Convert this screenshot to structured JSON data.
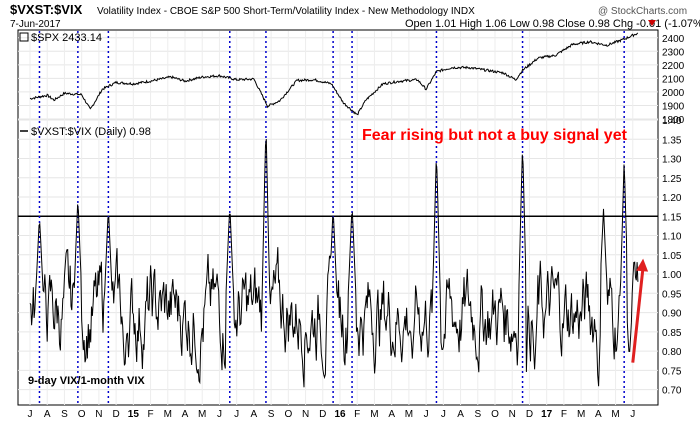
{
  "header": {
    "symbol": "$VXST:$VIX",
    "description": "Volatility Index - CBOE S&P 500 Short-Term/Volatility Index - New Methodology  INDX",
    "watermark": "@ StockCharts.com",
    "date": "7-Jun-2017",
    "ohlc": "Open 1.01  High 1.06  Low 0.98  Close 0.98  Chg -0.01 (-1.07%)",
    "down_marker_color": "#cc0000"
  },
  "top_panel": {
    "label": "$SPX 2433.14",
    "label_icon": "close-square-icon"
  },
  "bottom_panel": {
    "label": "$VXST:$VIX (Daily) 0.98",
    "annotation": "Fear rising but not a buy signal yet",
    "annotation_color": "#ff0000",
    "caption": "9-day VIX/1-month VIX"
  },
  "months": [
    "J",
    "A",
    "S",
    "O",
    "N",
    "D",
    "15",
    "F",
    "M",
    "A",
    "M",
    "J",
    "J",
    "A",
    "S",
    "O",
    "N",
    "D",
    "16",
    "F",
    "M",
    "A",
    "M",
    "J",
    "J",
    "A",
    "S",
    "O",
    "N",
    "D",
    "17",
    "F",
    "M",
    "A",
    "M",
    "J"
  ],
  "chart_data": [
    {
      "type": "line",
      "name": "$SPX",
      "ylim": [
        1800,
        2450
      ],
      "yticks": [
        1800,
        1900,
        2000,
        2100,
        2200,
        2300,
        2400
      ],
      "anchors": [
        [
          0,
          1950
        ],
        [
          1.0,
          1975
        ],
        [
          1.4,
          1940
        ],
        [
          2.0,
          1990
        ],
        [
          3.0,
          1980
        ],
        [
          3.5,
          1870
        ],
        [
          4.2,
          2020
        ],
        [
          5.0,
          2070
        ],
        [
          6.0,
          2060
        ],
        [
          7.0,
          2080
        ],
        [
          8.2,
          2110
        ],
        [
          9.0,
          2080
        ],
        [
          10.0,
          2110
        ],
        [
          11.0,
          2120
        ],
        [
          12.0,
          2090
        ],
        [
          13.0,
          2095
        ],
        [
          13.8,
          1895
        ],
        [
          14.5,
          1935
        ],
        [
          15.5,
          2085
        ],
        [
          16.5,
          2090
        ],
        [
          17.5,
          2060
        ],
        [
          18.2,
          1920
        ],
        [
          19.0,
          1830
        ],
        [
          19.5,
          1940
        ],
        [
          20.5,
          2060
        ],
        [
          21.5,
          2080
        ],
        [
          22.5,
          2090
        ],
        [
          23.0,
          2020
        ],
        [
          23.6,
          2150
        ],
        [
          24.5,
          2180
        ],
        [
          25.5,
          2180
        ],
        [
          27.5,
          2140
        ],
        [
          28.2,
          2090
        ],
        [
          28.6,
          2160
        ],
        [
          29.5,
          2250
        ],
        [
          30.5,
          2270
        ],
        [
          31.5,
          2350
        ],
        [
          32.5,
          2370
        ],
        [
          33.5,
          2345
        ],
        [
          34.5,
          2390
        ],
        [
          35.3,
          2435
        ]
      ]
    },
    {
      "type": "line",
      "name": "$VXST:$VIX (Daily)",
      "ylim": [
        0.66,
        1.4
      ],
      "yticks": [
        0.7,
        0.75,
        0.8,
        0.85,
        0.9,
        0.95,
        1.0,
        1.05,
        1.1,
        1.15,
        1.2,
        1.25,
        1.3,
        1.35,
        1.4
      ],
      "reference_line": 1.15,
      "start_month_index": 0,
      "end_month_index": 35.3,
      "base_level": 0.9,
      "noise_amplitude": 0.07,
      "spikes": [
        {
          "x": 0.55,
          "peak": 1.15
        },
        {
          "x": 2.78,
          "peak": 1.2
        },
        {
          "x": 4.55,
          "peak": 1.17
        },
        {
          "x": 11.6,
          "peak": 1.18
        },
        {
          "x": 13.7,
          "peak": 1.39
        },
        {
          "x": 17.6,
          "peak": 1.17
        },
        {
          "x": 18.7,
          "peak": 1.18
        },
        {
          "x": 23.6,
          "peak": 1.32
        },
        {
          "x": 28.6,
          "peak": 1.34
        },
        {
          "x": 33.3,
          "peak": 1.17
        },
        {
          "x": 34.5,
          "peak": 1.3
        }
      ],
      "lows": [
        {
          "x": 5.5,
          "low": 0.74
        },
        {
          "x": 22.2,
          "low": 0.78
        },
        {
          "x": 29.3,
          "low": 0.75
        },
        {
          "x": 33.0,
          "low": 0.69
        },
        {
          "x": 34.8,
          "low": 0.78
        }
      ],
      "last_value": 0.98,
      "arrow_color": "#e02020"
    }
  ],
  "signal_lines": {
    "color": "#0000cc",
    "x": [
      0.55,
      2.78,
      4.55,
      11.6,
      13.7,
      17.6,
      18.7,
      23.6,
      28.6,
      34.5
    ]
  }
}
